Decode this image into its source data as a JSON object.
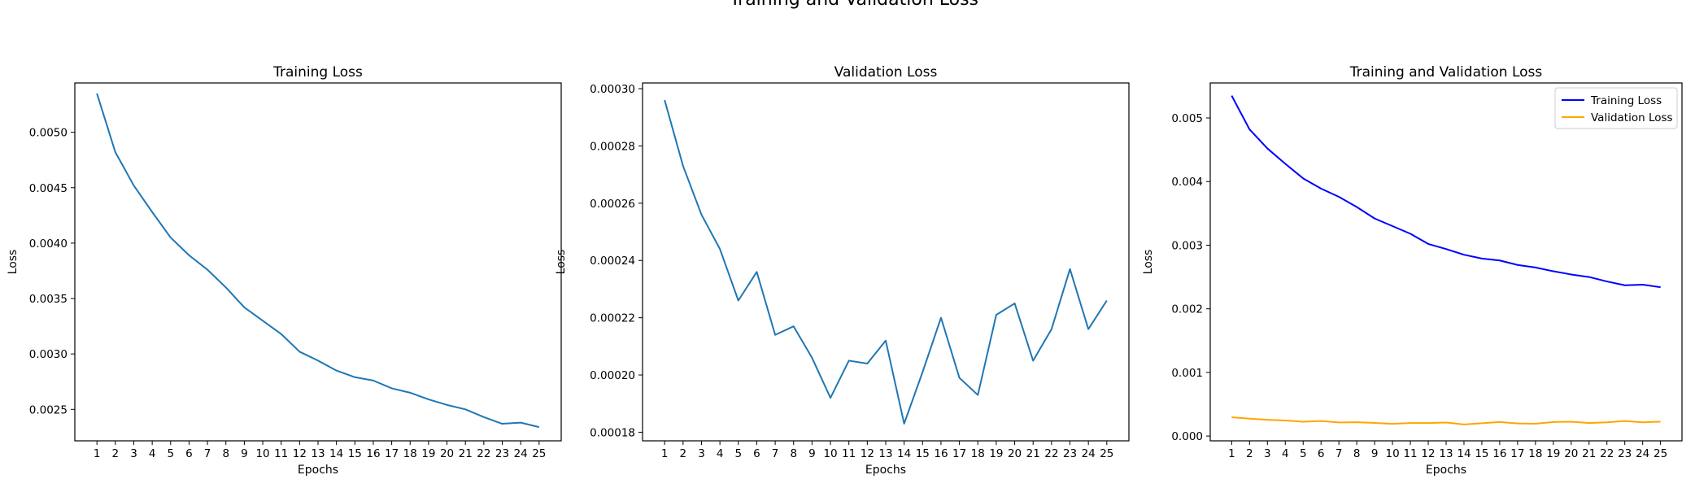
{
  "figure": {
    "suptitle": "Training and Validation Loss"
  },
  "colors": {
    "default_line": "#1f77b4",
    "training": "#0000ff",
    "validation": "#ffa500",
    "axes": "#000000"
  },
  "chart_data": [
    {
      "type": "line",
      "title": "Training Loss",
      "xlabel": "Epochs",
      "ylabel": "Loss",
      "x": [
        1,
        2,
        3,
        4,
        5,
        6,
        7,
        8,
        9,
        10,
        11,
        12,
        13,
        14,
        15,
        16,
        17,
        18,
        19,
        20,
        21,
        22,
        23,
        24,
        25
      ],
      "xlim": [
        -0.2,
        26.2
      ],
      "ylim": [
        0.002216,
        0.005445
      ],
      "yticks": [
        0.0025,
        0.003,
        0.0035,
        0.004,
        0.0045,
        0.005
      ],
      "ytick_labels": [
        "0.0025",
        "0.0030",
        "0.0035",
        "0.0040",
        "0.0045",
        "0.0050"
      ],
      "legend": null,
      "series": [
        {
          "name": "Training Loss",
          "color": "#1f77b4",
          "values": [
            0.00535,
            0.00482,
            0.00452,
            0.00428,
            0.00405,
            0.00389,
            0.00376,
            0.0036,
            0.00342,
            0.0033,
            0.00318,
            0.00302,
            0.00294,
            0.00285,
            0.00279,
            0.00276,
            0.00269,
            0.00265,
            0.00259,
            0.00254,
            0.0025,
            0.00243,
            0.00237,
            0.00238,
            0.00234
          ]
        }
      ]
    },
    {
      "type": "line",
      "title": "Validation Loss",
      "xlabel": "Epochs",
      "ylabel": "Loss",
      "x": [
        1,
        2,
        3,
        4,
        5,
        6,
        7,
        8,
        9,
        10,
        11,
        12,
        13,
        14,
        15,
        16,
        17,
        18,
        19,
        20,
        21,
        22,
        23,
        24,
        25
      ],
      "xlim": [
        -0.2,
        26.2
      ],
      "ylim": [
        0.000177,
        0.000302
      ],
      "yticks": [
        0.00018,
        0.0002,
        0.00022,
        0.00024,
        0.00026,
        0.00028,
        0.0003
      ],
      "ytick_labels": [
        "0.00018",
        "0.00020",
        "0.00022",
        "0.00024",
        "0.00026",
        "0.00028",
        "0.00030"
      ],
      "legend": null,
      "series": [
        {
          "name": "Validation Loss",
          "color": "#1f77b4",
          "values": [
            0.000296,
            0.000273,
            0.000256,
            0.000244,
            0.000226,
            0.000236,
            0.000214,
            0.000217,
            0.000206,
            0.000192,
            0.000205,
            0.000204,
            0.000212,
            0.000183,
            0.000201,
            0.00022,
            0.000199,
            0.000193,
            0.000221,
            0.000225,
            0.000205,
            0.000216,
            0.000237,
            0.000216,
            0.000226
          ]
        }
      ]
    },
    {
      "type": "line",
      "title": "Training and Validation Loss",
      "xlabel": "Epochs",
      "ylabel": "Loss",
      "x": [
        1,
        2,
        3,
        4,
        5,
        6,
        7,
        8,
        9,
        10,
        11,
        12,
        13,
        14,
        15,
        16,
        17,
        18,
        19,
        20,
        21,
        22,
        23,
        24,
        25
      ],
      "xlim": [
        -0.2,
        26.2
      ],
      "ylim": [
        -7.5e-05,
        0.00555
      ],
      "yticks": [
        0.0,
        0.001,
        0.002,
        0.003,
        0.004,
        0.005
      ],
      "ytick_labels": [
        "0.000",
        "0.001",
        "0.002",
        "0.003",
        "0.004",
        "0.005"
      ],
      "legend": "top-right",
      "series": [
        {
          "name": "Training Loss",
          "color": "#0000ff",
          "values": [
            0.00535,
            0.00482,
            0.00452,
            0.00428,
            0.00405,
            0.00389,
            0.00376,
            0.0036,
            0.00342,
            0.0033,
            0.00318,
            0.00302,
            0.00294,
            0.00285,
            0.00279,
            0.00276,
            0.00269,
            0.00265,
            0.00259,
            0.00254,
            0.0025,
            0.00243,
            0.00237,
            0.00238,
            0.00234
          ]
        },
        {
          "name": "Validation Loss",
          "color": "#ffa500",
          "values": [
            0.000296,
            0.000273,
            0.000256,
            0.000244,
            0.000226,
            0.000236,
            0.000214,
            0.000217,
            0.000206,
            0.000192,
            0.000205,
            0.000204,
            0.000212,
            0.000183,
            0.000201,
            0.00022,
            0.000199,
            0.000193,
            0.000221,
            0.000225,
            0.000205,
            0.000216,
            0.000237,
            0.000216,
            0.000226
          ]
        }
      ]
    }
  ]
}
